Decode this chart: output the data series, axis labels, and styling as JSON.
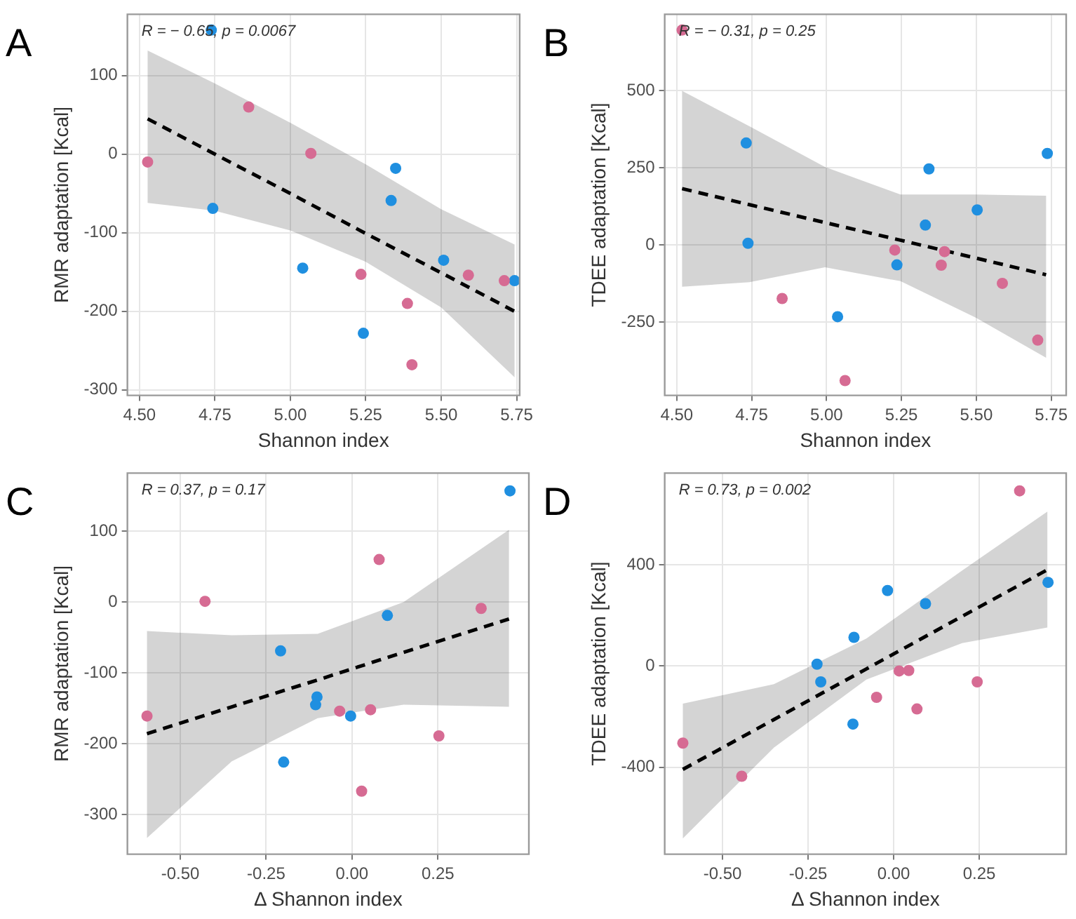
{
  "chart_data": [
    {
      "type": "scatter",
      "title": "A",
      "xlabel": "Shannon index",
      "ylabel": "RMR adaptation [Kcal]",
      "annotations": [
        "R = − 0.65, p = 0.0067"
      ],
      "xlim": [
        4.46,
        5.76
      ],
      "ylim": [
        -307,
        178
      ],
      "xticks": [
        {
          "value": 4.5,
          "label": "4.50"
        },
        {
          "value": 4.75,
          "label": "4.75"
        },
        {
          "value": 5,
          "label": "5.00"
        },
        {
          "value": 5.25,
          "label": "5.25"
        },
        {
          "value": 5.5,
          "label": "5.50"
        },
        {
          "value": 5.75,
          "label": "5.75"
        }
      ],
      "yticks": [
        -300,
        -200,
        -100,
        0,
        100
      ],
      "grid": true,
      "legend": false,
      "series": [
        {
          "color": "#d66b93",
          "marker": "circle",
          "x": [
            4.527,
            4.862,
            5.068,
            5.234,
            5.388,
            5.403,
            5.59,
            5.709
          ],
          "values": [
            -10,
            60,
            1,
            -153,
            -190,
            -268,
            -154,
            -161
          ]
        },
        {
          "color": "#1f8fe0",
          "marker": "circle",
          "x": [
            4.738,
            4.743,
            5.041,
            5.242,
            5.349,
            5.334,
            5.508,
            5.743
          ],
          "values": [
            158,
            -69,
            -145,
            -228,
            -18,
            -59,
            -135,
            -161
          ]
        },
        {
          "type": "line",
          "marker": "none",
          "line_style": "dashed",
          "color": "#000000",
          "x": [
            4.527,
            4.75,
            5.0,
            5.25,
            5.5,
            5.743
          ],
          "values": [
            45,
            0,
            -50,
            -101,
            -151,
            -200
          ],
          "upper": [
            132,
            90,
            40,
            -13,
            -70,
            -115
          ],
          "lower": [
            -62,
            -72,
            -97,
            -137,
            -195,
            -284
          ]
        }
      ]
    },
    {
      "type": "scatter",
      "title": "B",
      "xlabel": "Shannon index",
      "ylabel": "TDEE adaptation [Kcal]",
      "annotations": [
        "R = − 0.31, p = 0.25"
      ],
      "xlim": [
        4.46,
        5.8
      ],
      "ylim": [
        -487,
        748
      ],
      "xticks": [
        {
          "value": 4.5,
          "label": "4.50"
        },
        {
          "value": 4.75,
          "label": "4.75"
        },
        {
          "value": 5,
          "label": "5.00"
        },
        {
          "value": 5.25,
          "label": "5.25"
        },
        {
          "value": 5.5,
          "label": "5.50"
        },
        {
          "value": 5.75,
          "label": "5.75"
        }
      ],
      "yticks": [
        -250,
        0,
        250,
        500
      ],
      "grid": true,
      "legend": false,
      "series": [
        {
          "color": "#d66b93",
          "marker": "circle",
          "x": [
            4.518,
            4.852,
            5.062,
            5.228,
            5.394,
            5.383,
            5.587,
            5.705
          ],
          "values": [
            697,
            -173,
            -439,
            -16,
            -21,
            -65,
            -124,
            -308
          ]
        },
        {
          "color": "#1f8fe0",
          "marker": "circle",
          "x": [
            4.732,
            4.738,
            5.037,
            5.235,
            5.342,
            5.33,
            5.503,
            5.737
          ],
          "values": [
            331,
            6,
            -232,
            -64,
            247,
            65,
            114,
            297
          ]
        },
        {
          "type": "line",
          "marker": "none",
          "line_style": "dashed",
          "color": "#000000",
          "x": [
            4.518,
            4.743,
            4.995,
            5.247,
            5.498,
            5.733
          ],
          "values": [
            183,
            131,
            73,
            16,
            -42,
            -96
          ],
          "upper": [
            500,
            385,
            253,
            164,
            164,
            160
          ],
          "lower": [
            -135,
            -120,
            -72,
            -117,
            -235,
            -365
          ]
        }
      ]
    },
    {
      "type": "scatter",
      "title": "C",
      "xlabel": "Δ Shannon index",
      "ylabel": "RMR adaptation [Kcal]",
      "annotations": [
        "R = 0.37, p = 0.17"
      ],
      "xlim": [
        -0.654,
        0.515
      ],
      "ylim": [
        -356,
        182
      ],
      "xticks": [
        {
          "value": -0.5,
          "label": "-0.50"
        },
        {
          "value": -0.25,
          "label": "-0.25"
        },
        {
          "value": 0,
          "label": "0.00"
        },
        {
          "value": 0.25,
          "label": "0.25"
        }
      ],
      "yticks": [
        -300,
        -200,
        -100,
        0,
        100
      ],
      "grid": true,
      "legend": false,
      "series": [
        {
          "color": "#d66b93",
          "marker": "circle",
          "x": [
            -0.597,
            -0.428,
            -0.036,
            0.054,
            0.028,
            0.079,
            0.253,
            0.376
          ],
          "values": [
            -161,
            1,
            -154,
            -152,
            -267,
            60,
            -189,
            -9
          ]
        },
        {
          "color": "#1f8fe0",
          "marker": "circle",
          "x": [
            -0.208,
            -0.199,
            -0.102,
            -0.106,
            -0.004,
            0.103,
            0.46
          ],
          "values": [
            -69,
            -226,
            -134,
            -145,
            -161,
            -19,
            157
          ]
        },
        {
          "type": "line",
          "marker": "none",
          "line_style": "dashed",
          "color": "#000000",
          "x": [
            -0.597,
            -0.35,
            -0.1,
            0.15,
            0.457
          ],
          "values": [
            -186,
            -148,
            -110,
            -71,
            -24
          ],
          "upper": [
            -41,
            -47,
            -45,
            0,
            102
          ],
          "lower": [
            -333,
            -225,
            -164,
            -145,
            -148
          ]
        }
      ]
    },
    {
      "type": "scatter",
      "title": "D",
      "xlabel": "Δ Shannon index",
      "ylabel": "TDEE adaptation [Kcal]",
      "annotations": [
        "R = 0.73, p = 0.002"
      ],
      "xlim": [
        -0.669,
        0.504
      ],
      "ylim": [
        -744,
        762
      ],
      "xticks": [
        {
          "value": -0.5,
          "label": "-0.50"
        },
        {
          "value": -0.25,
          "label": "-0.25"
        },
        {
          "value": 0,
          "label": "0.00"
        },
        {
          "value": 0.25,
          "label": "0.25"
        }
      ],
      "yticks": [
        -400,
        0,
        400
      ],
      "grid": true,
      "legend": false,
      "series": [
        {
          "color": "#d66b93",
          "marker": "circle",
          "x": [
            -0.616,
            -0.444,
            -0.05,
            0.016,
            0.044,
            0.068,
            0.244,
            0.368
          ],
          "values": [
            -305,
            -436,
            -124,
            -20,
            -18,
            -170,
            -63,
            692
          ]
        },
        {
          "color": "#1f8fe0",
          "marker": "circle",
          "x": [
            -0.224,
            -0.213,
            -0.116,
            -0.119,
            -0.018,
            0.093,
            0.451
          ],
          "values": [
            7,
            -63,
            113,
            -230,
            298,
            246,
            330
          ]
        },
        {
          "type": "line",
          "marker": "none",
          "line_style": "dashed",
          "color": "#000000",
          "x": [
            -0.616,
            -0.35,
            -0.08,
            0.2,
            0.449
          ],
          "values": [
            -409,
            -212,
            -12,
            196,
            380
          ],
          "upper": [
            -149,
            -72,
            108,
            377,
            610
          ],
          "lower": [
            -682,
            -323,
            -54,
            90,
            152
          ]
        }
      ]
    }
  ]
}
